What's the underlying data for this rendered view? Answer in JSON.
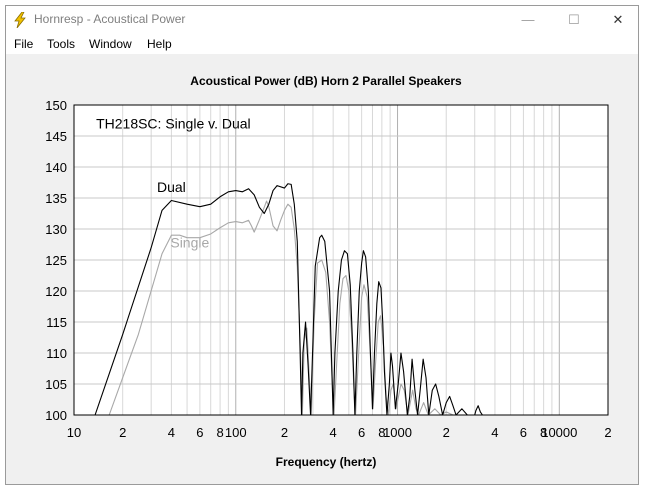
{
  "window": {
    "title": "Hornresp - Acoustical Power",
    "controls": {
      "minimize": "—",
      "maximize": "☐",
      "close": "✕"
    }
  },
  "menu": [
    "File",
    "Tools",
    "Window",
    "Help"
  ],
  "colors": {
    "dual": "#000000",
    "single": "#a8a8a8",
    "grid": "#c8c8c8",
    "plot_bg": "#ffffff",
    "window_bg": "#f0f0f0"
  },
  "chart_data": {
    "type": "line",
    "title": "Acoustical Power (dB)    Horn    2 Parallel Speakers",
    "xlabel": "Frequency (hertz)",
    "ylabel": "",
    "annotation": "TH218SC: Single v. Dual",
    "xscale": "log",
    "xlim": [
      10,
      20000
    ],
    "ylim": [
      100,
      150
    ],
    "y_ticks": [
      100,
      105,
      110,
      115,
      120,
      125,
      130,
      135,
      140,
      145,
      150
    ],
    "x_tick_labels": [
      {
        "v": 10,
        "t": "10"
      },
      {
        "v": 20,
        "t": "2"
      },
      {
        "v": 40,
        "t": "4"
      },
      {
        "v": 60,
        "t": "6"
      },
      {
        "v": 80,
        "t": "8"
      },
      {
        "v": 100,
        "t": "100"
      },
      {
        "v": 200,
        "t": "2"
      },
      {
        "v": 400,
        "t": "4"
      },
      {
        "v": 600,
        "t": "6"
      },
      {
        "v": 800,
        "t": "8"
      },
      {
        "v": 1000,
        "t": "1000"
      },
      {
        "v": 2000,
        "t": "2"
      },
      {
        "v": 4000,
        "t": "4"
      },
      {
        "v": 6000,
        "t": "6"
      },
      {
        "v": 8000,
        "t": "8"
      },
      {
        "v": 10000,
        "t": "10000"
      },
      {
        "v": 20000,
        "t": "2"
      }
    ],
    "grid": true,
    "series": [
      {
        "name": "Dual",
        "label_at": [
          40,
          136
        ],
        "points": [
          [
            13.5,
            100
          ],
          [
            20,
            113
          ],
          [
            30,
            127
          ],
          [
            35,
            133
          ],
          [
            40,
            134.6
          ],
          [
            50,
            134
          ],
          [
            60,
            133.6
          ],
          [
            70,
            134
          ],
          [
            80,
            135.2
          ],
          [
            90,
            136
          ],
          [
            100,
            136.2
          ],
          [
            110,
            136
          ],
          [
            120,
            136.5
          ],
          [
            130,
            135.5
          ],
          [
            140,
            133.5
          ],
          [
            150,
            132.5
          ],
          [
            160,
            134
          ],
          [
            170,
            136.2
          ],
          [
            180,
            137
          ],
          [
            200,
            136.6
          ],
          [
            210,
            137.3
          ],
          [
            220,
            137.2
          ],
          [
            230,
            134
          ],
          [
            240,
            128
          ],
          [
            250,
            110
          ],
          [
            255,
            100
          ],
          [
            260,
            110
          ],
          [
            270,
            115
          ],
          [
            280,
            108
          ],
          [
            290,
            100
          ],
          [
            300,
            112
          ],
          [
            310,
            124
          ],
          [
            330,
            128.6
          ],
          [
            340,
            129
          ],
          [
            355,
            128
          ],
          [
            380,
            120
          ],
          [
            390,
            110
          ],
          [
            400,
            100
          ],
          [
            410,
            110
          ],
          [
            430,
            120
          ],
          [
            450,
            125
          ],
          [
            470,
            126.5
          ],
          [
            490,
            126
          ],
          [
            510,
            121
          ],
          [
            530,
            110
          ],
          [
            545,
            100
          ],
          [
            560,
            110
          ],
          [
            580,
            120
          ],
          [
            600,
            124.5
          ],
          [
            615,
            126.5
          ],
          [
            635,
            125.5
          ],
          [
            660,
            120
          ],
          [
            680,
            110
          ],
          [
            700,
            101
          ],
          [
            720,
            110
          ],
          [
            745,
            118
          ],
          [
            765,
            121.5
          ],
          [
            790,
            120.5
          ],
          [
            810,
            115
          ],
          [
            830,
            107
          ],
          [
            860,
            100
          ],
          [
            890,
            105
          ],
          [
            910,
            110
          ],
          [
            930,
            108
          ],
          [
            970,
            101
          ],
          [
            1010,
            105
          ],
          [
            1050,
            110
          ],
          [
            1090,
            107
          ],
          [
            1150,
            100
          ],
          [
            1190,
            103
          ],
          [
            1230,
            109
          ],
          [
            1280,
            104
          ],
          [
            1330,
            100
          ],
          [
            1380,
            104
          ],
          [
            1440,
            109
          ],
          [
            1500,
            106
          ],
          [
            1560,
            100
          ],
          [
            1640,
            104
          ],
          [
            1720,
            105
          ],
          [
            1800,
            103
          ],
          [
            1900,
            100
          ],
          [
            2000,
            102
          ],
          [
            2100,
            103
          ],
          [
            2200,
            101.5
          ],
          [
            2300,
            100
          ],
          [
            2500,
            101
          ],
          [
            2700,
            100
          ],
          [
            3000,
            100
          ],
          [
            3050,
            100.7
          ],
          [
            3150,
            101.5
          ],
          [
            3250,
            100.5
          ],
          [
            3350,
            100
          ]
        ]
      },
      {
        "name": "Single",
        "label_at": [
          52,
          127
        ],
        "points": [
          [
            16.5,
            100
          ],
          [
            25,
            113
          ],
          [
            35,
            126
          ],
          [
            40,
            129
          ],
          [
            45,
            129
          ],
          [
            50,
            128.6
          ],
          [
            60,
            128.6
          ],
          [
            70,
            129.2
          ],
          [
            80,
            130.2
          ],
          [
            90,
            131
          ],
          [
            100,
            131.2
          ],
          [
            110,
            131
          ],
          [
            120,
            131.4
          ],
          [
            125,
            130.5
          ],
          [
            130,
            129.5
          ],
          [
            140,
            131.5
          ],
          [
            150,
            133.5
          ],
          [
            155,
            134.5
          ],
          [
            160,
            133.6
          ],
          [
            170,
            130.5
          ],
          [
            180,
            129.7
          ],
          [
            190,
            131.5
          ],
          [
            200,
            133
          ],
          [
            210,
            134
          ],
          [
            220,
            133.5
          ],
          [
            230,
            130
          ],
          [
            240,
            124
          ],
          [
            250,
            112
          ],
          [
            258,
            100
          ],
          [
            265,
            112
          ],
          [
            275,
            114
          ],
          [
            285,
            106
          ],
          [
            293,
            100
          ],
          [
            305,
            115
          ],
          [
            320,
            124.5
          ],
          [
            340,
            125
          ],
          [
            360,
            123
          ],
          [
            380,
            115
          ],
          [
            395,
            105
          ],
          [
            405,
            100
          ],
          [
            420,
            108
          ],
          [
            440,
            118
          ],
          [
            460,
            122
          ],
          [
            480,
            122.5
          ],
          [
            500,
            120
          ],
          [
            520,
            113
          ],
          [
            540,
            103
          ],
          [
            550,
            100
          ],
          [
            575,
            110
          ],
          [
            600,
            119
          ],
          [
            620,
            121
          ],
          [
            650,
            119
          ],
          [
            675,
            111
          ],
          [
            705,
            101
          ],
          [
            730,
            108
          ],
          [
            760,
            115
          ],
          [
            785,
            116
          ],
          [
            820,
            111
          ],
          [
            850,
            103
          ],
          [
            880,
            100
          ],
          [
            910,
            104
          ],
          [
            940,
            105
          ],
          [
            980,
            101
          ],
          [
            1050,
            105
          ],
          [
            1100,
            104
          ],
          [
            1160,
            100
          ],
          [
            1240,
            104
          ],
          [
            1300,
            101
          ],
          [
            1350,
            100
          ],
          [
            1450,
            102
          ],
          [
            1550,
            100
          ],
          [
            1700,
            101
          ],
          [
            1850,
            100
          ],
          [
            2000,
            100.5
          ],
          [
            2200,
            100
          ]
        ]
      }
    ]
  }
}
